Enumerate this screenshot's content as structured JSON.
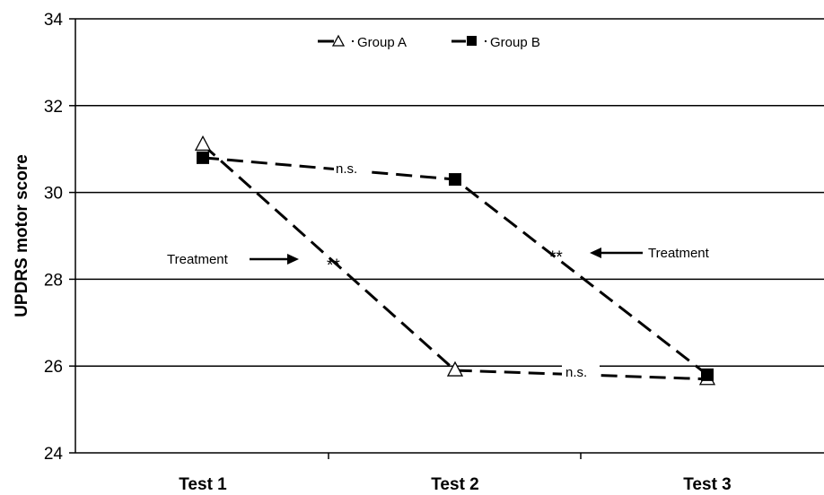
{
  "chart_data": {
    "type": "line",
    "ylabel": "UPDRS motor score",
    "xlabel": "",
    "ylim": [
      24,
      34
    ],
    "yticks": [
      "24",
      "26",
      "28",
      "30",
      "32",
      "34"
    ],
    "categories": [
      "Test 1",
      "Test 2",
      "Test 3"
    ],
    "grid": true,
    "legend_position": "top-center",
    "series": [
      {
        "name": "Group A",
        "marker": "open-triangle",
        "values": [
          31.1,
          25.9,
          25.7
        ],
        "color": "#000000"
      },
      {
        "name": "Group B",
        "marker": "filled-square",
        "values": [
          30.8,
          30.3,
          25.8
        ],
        "color": "#000000"
      }
    ],
    "annotations": {
      "ns_top": "n.s.",
      "ns_bottom": "n.s.",
      "sig_left": "**",
      "sig_right": "**",
      "treatment_left": "Treatment",
      "treatment_right": "Treatment"
    }
  }
}
